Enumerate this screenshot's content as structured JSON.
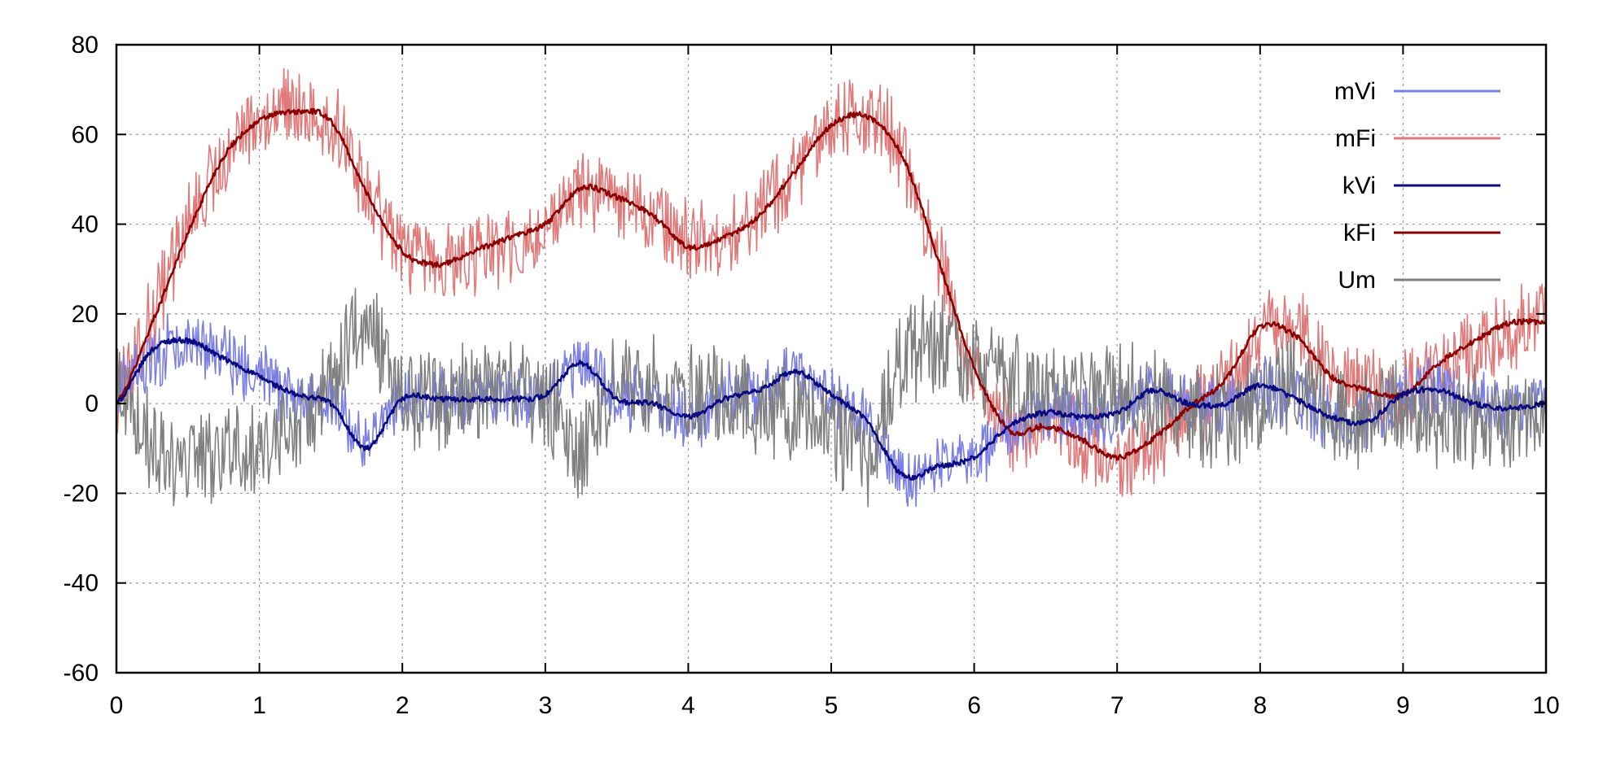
{
  "chart_data": {
    "type": "line",
    "title": "",
    "xlabel": "",
    "ylabel": "",
    "xlim": [
      0,
      10
    ],
    "ylim": [
      -60,
      80
    ],
    "x_ticks": [
      0,
      1,
      2,
      3,
      4,
      5,
      6,
      7,
      8,
      9,
      10
    ],
    "y_ticks": [
      -60,
      -40,
      -20,
      0,
      20,
      40,
      60,
      80
    ],
    "grid": true,
    "legend_position": "top-right",
    "x": [
      0.0,
      0.25,
      0.5,
      0.75,
      1.0,
      1.25,
      1.5,
      1.75,
      2.0,
      2.25,
      2.5,
      2.75,
      3.0,
      3.25,
      3.5,
      3.75,
      4.0,
      4.25,
      4.5,
      4.75,
      5.0,
      5.25,
      5.5,
      5.75,
      6.0,
      6.25,
      6.5,
      6.75,
      7.0,
      7.25,
      7.5,
      7.75,
      8.0,
      8.25,
      8.5,
      8.75,
      9.0,
      9.25,
      9.5,
      9.75,
      10.0
    ],
    "series": [
      {
        "name": "mVi",
        "color": "#7b7fe3",
        "noise": 7,
        "values": [
          5,
          10,
          14,
          10,
          6,
          2,
          0,
          -8,
          2,
          1,
          1,
          1,
          2,
          9,
          2,
          0,
          -3,
          1,
          3,
          7,
          2,
          -4,
          -16,
          -14,
          -12,
          -5,
          -2,
          -3,
          -2,
          2,
          0,
          0,
          3,
          1,
          -3,
          -4,
          2,
          3,
          0,
          -1,
          0
        ],
        "values_range_note": ""
      },
      {
        "name": "mFi",
        "color": "#e07a7a",
        "noise": 9,
        "values": [
          2,
          20,
          40,
          55,
          63,
          65,
          62,
          48,
          35,
          32,
          33,
          36,
          39,
          47,
          46,
          42,
          36,
          37,
          42,
          52,
          62,
          64,
          55,
          32,
          8,
          -6,
          -5,
          -8,
          -13,
          -10,
          -2,
          3,
          15,
          16,
          8,
          3,
          2,
          8,
          13,
          17,
          18
        ]
      },
      {
        "name": "kVi",
        "color": "#0a0a80",
        "noise": 1,
        "values": [
          0,
          12,
          14,
          10,
          6,
          2,
          0,
          -10,
          1,
          1,
          1,
          1,
          2,
          9,
          1,
          0,
          -3,
          1,
          3,
          7,
          2,
          -4,
          -16,
          -14,
          -12,
          -5,
          -2,
          -3,
          -2,
          3,
          0,
          0,
          4,
          1,
          -3,
          -4,
          2,
          3,
          0,
          -1,
          0
        ]
      },
      {
        "name": "kFi",
        "color": "#8b0000",
        "noise": 1,
        "values": [
          0,
          18,
          38,
          55,
          63,
          65,
          63,
          47,
          34,
          31,
          34,
          37,
          40,
          48,
          46,
          42,
          35,
          37,
          42,
          52,
          62,
          64,
          55,
          32,
          8,
          -6,
          -5,
          -8,
          -12,
          -8,
          -1,
          5,
          17,
          15,
          6,
          3,
          2,
          9,
          14,
          18,
          18
        ]
      },
      {
        "name": "Um",
        "color": "#808080",
        "noise": 11,
        "values": [
          2,
          -8,
          -12,
          -12,
          -10,
          -5,
          5,
          18,
          2,
          2,
          3,
          4,
          2,
          -10,
          5,
          3,
          2,
          2,
          0,
          -2,
          -5,
          -12,
          10,
          12,
          10,
          5,
          3,
          2,
          3,
          0,
          -2,
          -3,
          0,
          5,
          -3,
          -2,
          0,
          -4,
          -3,
          -5,
          -5
        ]
      }
    ]
  }
}
